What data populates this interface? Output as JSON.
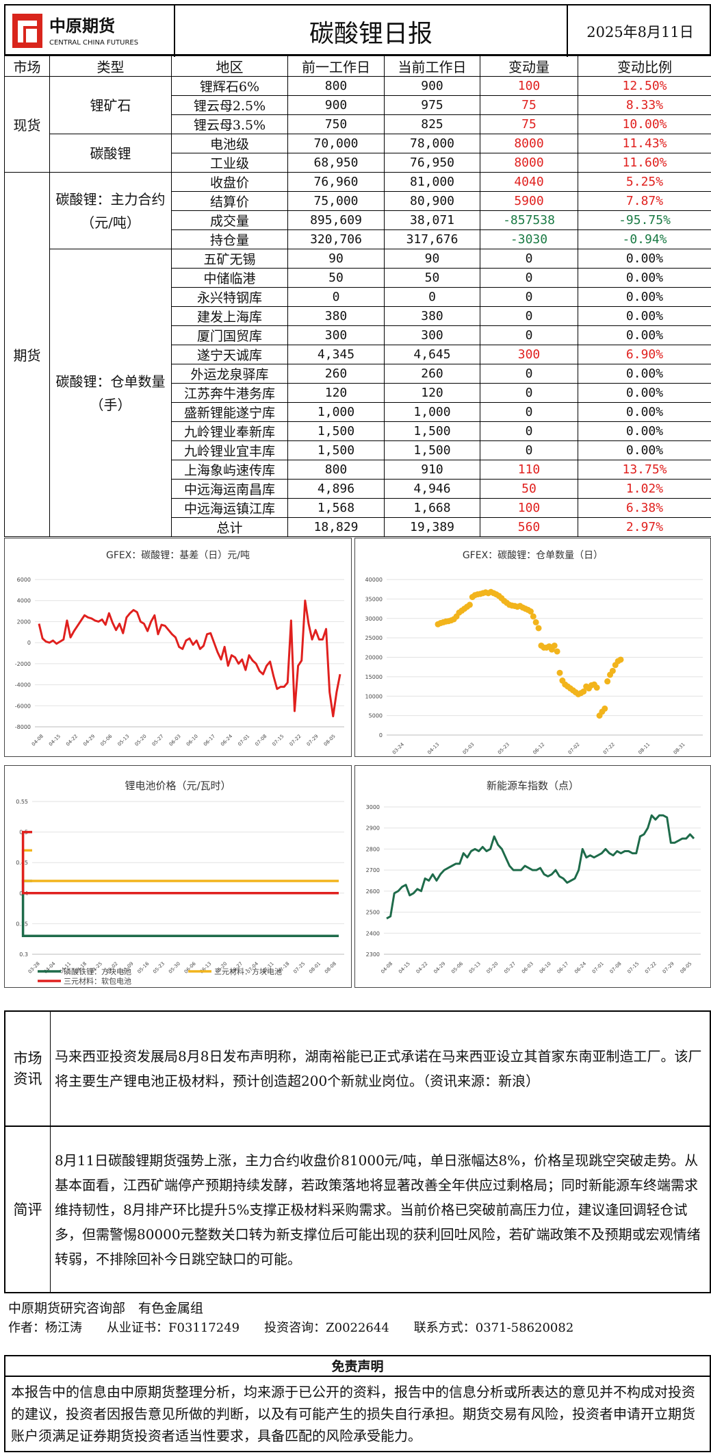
{
  "header": {
    "logo_cn": "中原期货",
    "logo_en": "CENTRAL CHINA FUTURES",
    "title": "碳酸锂日报",
    "date": "2025年8月11日"
  },
  "table_head": [
    "市场",
    "类型",
    "地区",
    "前一工作日",
    "当前工作日",
    "变动量",
    "变动比例"
  ],
  "spot_label": "现货",
  "futures_label": "期货",
  "spot_groups": [
    {
      "type": "锂矿石",
      "rows": [
        {
          "item": "锂辉石6%",
          "prev": "800",
          "cur": "900",
          "chg": "100",
          "pct": "12.50%",
          "dir": "up"
        },
        {
          "item": "锂云母2.5%",
          "prev": "900",
          "cur": "975",
          "chg": "75",
          "pct": "8.33%",
          "dir": "up"
        },
        {
          "item": "锂云母3.5%",
          "prev": "750",
          "cur": "825",
          "chg": "75",
          "pct": "10.00%",
          "dir": "up"
        }
      ]
    },
    {
      "type": "碳酸锂",
      "rows": [
        {
          "item": "电池级",
          "prev": "70,000",
          "cur": "78,000",
          "chg": "8000",
          "pct": "11.43%",
          "dir": "up"
        },
        {
          "item": "工业级",
          "prev": "68,950",
          "cur": "76,950",
          "chg": "8000",
          "pct": "11.60%",
          "dir": "up"
        }
      ]
    }
  ],
  "futures_groups": [
    {
      "type": "碳酸锂：主力合约（元/吨）",
      "rows": [
        {
          "item": "收盘价",
          "prev": "76,960",
          "cur": "81,000",
          "chg": "4040",
          "pct": "5.25%",
          "dir": "up"
        },
        {
          "item": "结算价",
          "prev": "75,000",
          "cur": "80,900",
          "chg": "5900",
          "pct": "7.87%",
          "dir": "up"
        },
        {
          "item": "成交量",
          "prev": "895,609",
          "cur": "38,071",
          "chg": "-857538",
          "pct": "-95.75%",
          "dir": "down"
        },
        {
          "item": "持仓量",
          "prev": "320,706",
          "cur": "317,676",
          "chg": "-3030",
          "pct": "-0.94%",
          "dir": "down"
        }
      ]
    },
    {
      "type": "碳酸锂：仓单数量（手）",
      "rows": [
        {
          "item": "五矿无锡",
          "prev": "90",
          "cur": "90",
          "chg": "0",
          "pct": "0.00%",
          "dir": "flat"
        },
        {
          "item": "中储临港",
          "prev": "50",
          "cur": "50",
          "chg": "0",
          "pct": "0.00%",
          "dir": "flat"
        },
        {
          "item": "永兴特钢库",
          "prev": "0",
          "cur": "0",
          "chg": "0",
          "pct": "0.00%",
          "dir": "flat"
        },
        {
          "item": "建发上海库",
          "prev": "380",
          "cur": "380",
          "chg": "0",
          "pct": "0.00%",
          "dir": "flat"
        },
        {
          "item": "厦门国贸库",
          "prev": "300",
          "cur": "300",
          "chg": "0",
          "pct": "0.00%",
          "dir": "flat"
        },
        {
          "item": "遂宁天诚库",
          "prev": "4,345",
          "cur": "4,645",
          "chg": "300",
          "pct": "6.90%",
          "dir": "up"
        },
        {
          "item": "外运龙泉驿库",
          "prev": "260",
          "cur": "260",
          "chg": "0",
          "pct": "0.00%",
          "dir": "flat"
        },
        {
          "item": "江苏奔牛港务库",
          "prev": "120",
          "cur": "120",
          "chg": "0",
          "pct": "0.00%",
          "dir": "flat"
        },
        {
          "item": "盛新锂能遂宁库",
          "prev": "1,000",
          "cur": "1,000",
          "chg": "0",
          "pct": "0.00%",
          "dir": "flat"
        },
        {
          "item": "九岭锂业奉新库",
          "prev": "1,500",
          "cur": "1,500",
          "chg": "0",
          "pct": "0.00%",
          "dir": "flat"
        },
        {
          "item": "九岭锂业宜丰库",
          "prev": "1,500",
          "cur": "1,500",
          "chg": "0",
          "pct": "0.00%",
          "dir": "flat"
        },
        {
          "item": "上海象屿速传库",
          "prev": "800",
          "cur": "910",
          "chg": "110",
          "pct": "13.75%",
          "dir": "up"
        },
        {
          "item": "中远海运南昌库",
          "prev": "4,896",
          "cur": "4,946",
          "chg": "50",
          "pct": "1.02%",
          "dir": "up"
        },
        {
          "item": "中远海运镇江库",
          "prev": "1,568",
          "cur": "1,668",
          "chg": "100",
          "pct": "6.38%",
          "dir": "up"
        },
        {
          "item": "总计",
          "prev": "18,829",
          "cur": "19,389",
          "chg": "560",
          "pct": "2.97%",
          "dir": "up"
        }
      ]
    }
  ],
  "colors": {
    "up": "#e0201e",
    "down": "#1a7a44",
    "flat": "#111"
  },
  "chart_data": [
    {
      "type": "line",
      "title": "GFEX：碳酸锂：基差（日）元/吨",
      "ylim": [
        -8000,
        6000
      ],
      "yticks": [
        -8000,
        -6000,
        -4000,
        -2000,
        0,
        2000,
        4000,
        6000
      ],
      "xticks": [
        "04-08",
        "04-15",
        "04-22",
        "04-29",
        "05-06",
        "05-13",
        "05-20",
        "05-27",
        "06-03",
        "06-10",
        "06-17",
        "06-24",
        "07-01",
        "07-08",
        "07-15",
        "07-22",
        "07-29",
        "08-05"
      ],
      "color": "#e0201e",
      "values": [
        1800,
        400,
        100,
        0,
        200,
        -100,
        100,
        300,
        2100,
        500,
        1100,
        1600,
        2100,
        2600,
        2400,
        2300,
        2100,
        2000,
        2200,
        1700,
        2800,
        1900,
        1200,
        1800,
        900,
        2400,
        2800,
        3100,
        2900,
        2000,
        1800,
        1100,
        2000,
        2600,
        800,
        1700,
        1600,
        1200,
        800,
        500,
        -400,
        -600,
        200,
        400,
        -200,
        200,
        -600,
        -300,
        800,
        900,
        0,
        -900,
        -1600,
        -400,
        -2200,
        -1200,
        -1400,
        -2000,
        -1600,
        -2600,
        -1200,
        -1700,
        -2000,
        -2700,
        -3000,
        -2200,
        -1800,
        -3200,
        -4400,
        -4200,
        -4200,
        -3800,
        2100,
        -6500,
        -2200,
        -1700,
        4000,
        1800,
        300,
        1200,
        300,
        300,
        1300,
        -4700,
        -7000,
        -4700,
        -3000
      ]
    },
    {
      "type": "scatter",
      "title": "GFEX：碳酸锂：仓单数量（日）",
      "ylim": [
        0,
        40000
      ],
      "yticks": [
        0,
        5000,
        10000,
        15000,
        20000,
        25000,
        30000,
        35000,
        40000
      ],
      "xticks": [
        "03-24",
        "04-13",
        "05-03",
        "05-23",
        "06-12",
        "07-02",
        "07-22",
        "08-11",
        "08-31"
      ],
      "color": "#f2b41c",
      "values": [
        28500,
        28800,
        29000,
        29200,
        29300,
        29500,
        29800,
        30500,
        31500,
        32000,
        32500,
        33000,
        33500,
        35500,
        36000,
        36200,
        36300,
        36500,
        36700,
        36500,
        36800,
        36500,
        36200,
        35800,
        35200,
        34500,
        34000,
        33500,
        33300,
        33200,
        33000,
        33200,
        32800,
        32500,
        32200,
        31800,
        30500,
        29000,
        27500,
        23000,
        22500,
        22500,
        22800,
        22000,
        23000,
        21500,
        16000,
        14000,
        13000,
        12500,
        12000,
        11500,
        11000,
        10500,
        10800,
        11200,
        12500,
        12000,
        12800,
        13000,
        12200,
        5000,
        6000,
        6800,
        13800,
        15500,
        16500,
        18000,
        19000,
        19389
      ]
    },
    {
      "type": "line",
      "title": "锂电池价格（元/瓦时）",
      "ylim": [
        0.3,
        0.55
      ],
      "yticks": [
        0.3,
        0.35,
        0.4,
        0.45,
        0.5,
        0.55
      ],
      "xticks": [
        "03-28",
        "04-04",
        "04-11",
        "04-18",
        "04-25",
        "05-02",
        "05-09",
        "05-16",
        "05-23",
        "05-30",
        "06-06",
        "06-13",
        "06-20",
        "06-27",
        "07-04",
        "07-11",
        "07-18",
        "07-25",
        "08-01",
        "08-08"
      ],
      "series": [
        {
          "name": "磷酸铁锂：方块电池",
          "color": "#1e6b4a",
          "before": 0.42,
          "after": 0.33
        },
        {
          "name": "三元材料：方块电池",
          "color": "#f2b41c",
          "before": 0.47,
          "after": 0.42
        },
        {
          "name": "三元材料：软包电池",
          "color": "#e0201e",
          "before": 0.5,
          "after": 0.4
        }
      ],
      "break_at": "07-08"
    },
    {
      "type": "line",
      "title": "新能源车指数（点）",
      "ylim": [
        2300,
        3000
      ],
      "yticks": [
        2300,
        2400,
        2500,
        2600,
        2700,
        2800,
        2900,
        3000
      ],
      "xticks": [
        "04-08",
        "04-15",
        "04-22",
        "04-29",
        "05-06",
        "05-13",
        "05-20",
        "05-27",
        "06-03",
        "06-10",
        "06-17",
        "06-24",
        "07-01",
        "07-08",
        "07-15",
        "07-22",
        "07-29",
        "08-05"
      ],
      "color": "#1e6b4a",
      "values": [
        2470,
        2480,
        2590,
        2600,
        2620,
        2630,
        2580,
        2590,
        2610,
        2600,
        2660,
        2650,
        2680,
        2650,
        2680,
        2700,
        2710,
        2720,
        2730,
        2730,
        2780,
        2760,
        2790,
        2800,
        2790,
        2810,
        2790,
        2800,
        2860,
        2820,
        2800,
        2760,
        2720,
        2700,
        2700,
        2700,
        2720,
        2710,
        2700,
        2700,
        2710,
        2680,
        2670,
        2680,
        2700,
        2670,
        2660,
        2640,
        2650,
        2660,
        2700,
        2800,
        2760,
        2770,
        2760,
        2770,
        2780,
        2800,
        2780,
        2770,
        2790,
        2780,
        2790,
        2790,
        2780,
        2780,
        2860,
        2870,
        2900,
        2960,
        2940,
        2960,
        2960,
        2950,
        2830,
        2830,
        2840,
        2850,
        2850,
        2870,
        2850
      ]
    }
  ],
  "news": {
    "label": "市场资讯",
    "text": "马来西亚投资发展局8月8日发布声明称，湖南裕能已正式承诺在马来西亚设立其首家东南亚制造工厂。该厂将主要生产锂电池正极材料，预计创造超200个新就业岗位。（资讯来源：新浪）"
  },
  "review": {
    "label": "简评",
    "text": "8月11日碳酸锂期货强势上涨，主力合约收盘价81000元/吨，单日涨幅达8%，价格呈现跳空突破走势。从基本面看，江西矿端停产预期持续发酵，若政策落地将显著改善全年供应过剩格局；同时新能源车终端需求维持韧性，8月排产环比提升5%支撑正极材料采购需求。当前价格已突破前高压力位，建议逢回调轻仓试多，但需警惕80000元整数关口转为新支撑位后可能出现的获利回吐风险，若矿端政策不及预期或宏观情绪转弱，不排除回补今日跳空缺口的可能。"
  },
  "footer": {
    "dept": "中原期货研究咨询部　有色金属组",
    "author": "作者：杨江涛　　从业证书：F03117249　　投资咨询：Z0022644　　联系方式：0371-58620082",
    "disclaimer_title": "免责声明",
    "disclaimer": "本报告中的信息由中原期货整理分析，均来源于已公开的资料，报告中的信息分析或所表达的意见并不构成对投资的建议，投资者因报告意见所做的判断，以及有可能产生的损失自行承担。期货交易有风险，投资者申请开立期货账户须满足证券期货投资者适当性要求，具备匹配的风险承受能力。"
  }
}
